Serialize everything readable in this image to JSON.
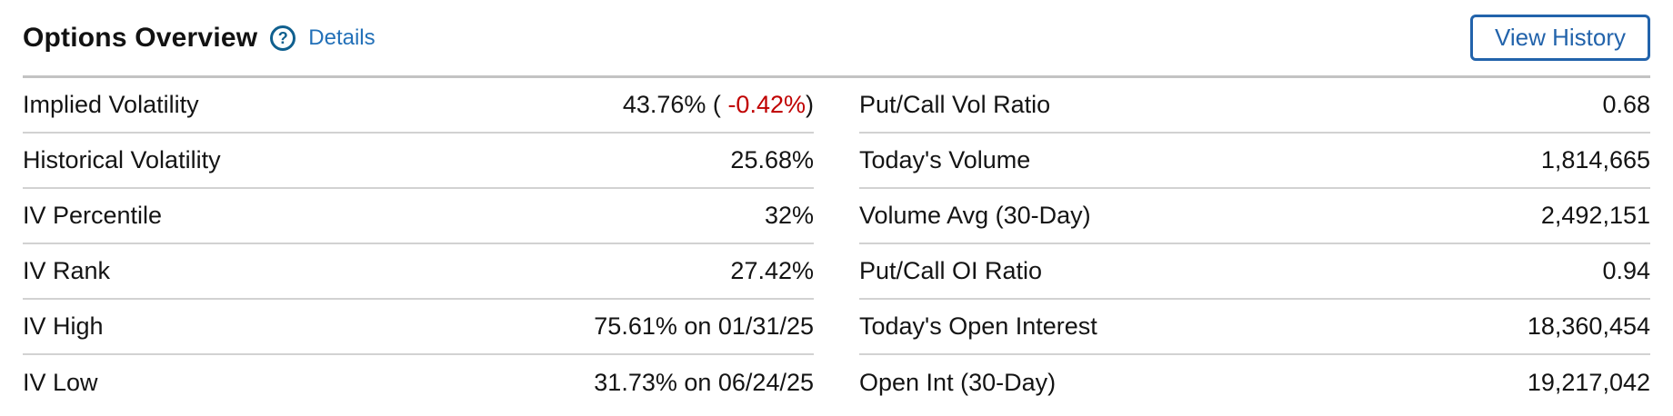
{
  "header": {
    "title": "Options Overview",
    "help_glyph": "?",
    "details_label": "Details",
    "view_history_label": "View History"
  },
  "table": {
    "left_rows": [
      {
        "label": "Implied Volatility",
        "value_prefix": "43.76% ( ",
        "value_change": "-0.42%",
        "value_suffix": ")"
      },
      {
        "label": "Historical Volatility",
        "value": "25.68%"
      },
      {
        "label": "IV Percentile",
        "value": "32%"
      },
      {
        "label": "IV Rank",
        "value": "27.42%"
      },
      {
        "label": "IV High",
        "value": "75.61% on 01/31/25"
      },
      {
        "label": "IV Low",
        "value": "31.73% on 06/24/25"
      }
    ],
    "right_rows": [
      {
        "label": "Put/Call Vol Ratio",
        "value": "0.68"
      },
      {
        "label": "Today's Volume",
        "value": "1,814,665"
      },
      {
        "label": "Volume Avg (30-Day)",
        "value": "2,492,151"
      },
      {
        "label": "Put/Call OI Ratio",
        "value": "0.94"
      },
      {
        "label": "Today's Open Interest",
        "value": "18,360,454"
      },
      {
        "label": "Open Int (30-Day)",
        "value": "19,217,042"
      }
    ]
  },
  "colors": {
    "link_blue": "#2270b8",
    "button_blue": "#2263ab",
    "help_icon_blue": "#10608f",
    "negative_red": "#c00000",
    "divider_gray": "#d2d2d2",
    "header_divider_gray": "#c3c3c3",
    "text": "#141414"
  }
}
